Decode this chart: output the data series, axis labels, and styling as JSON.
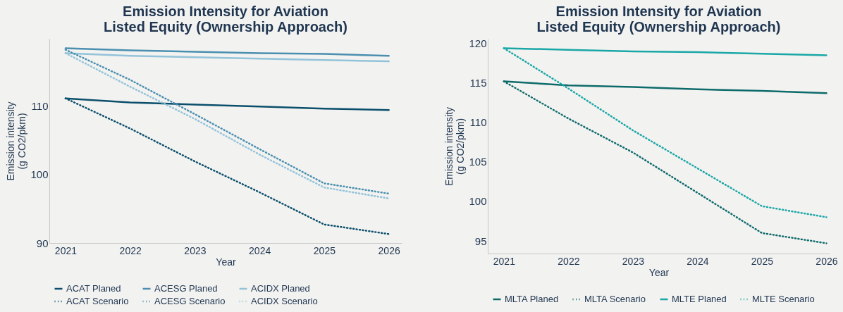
{
  "chart_data": [
    {
      "type": "line",
      "title": "Emission Intensity for Aviation\nListed Equity (Ownership Approach)",
      "xlabel": "Year",
      "ylabel": "Emission intensity\n(g CO2/pkm)",
      "x": [
        2021,
        2022,
        2023,
        2024,
        2025,
        2026
      ],
      "xlim": [
        2020.75,
        2026.2
      ],
      "xticks": [
        2021,
        2022,
        2023,
        2024,
        2025,
        2026
      ],
      "ylim": [
        90,
        119.8
      ],
      "yticks": [
        90,
        100,
        110
      ],
      "grid": false,
      "legend": "bottom",
      "series": [
        {
          "name": "ACAT Planed",
          "color": "#0b4f6c",
          "line_style": "solid",
          "values": [
            111.1,
            110.5,
            110.2,
            109.9,
            109.6,
            109.4
          ]
        },
        {
          "name": "ACESG Planed",
          "color": "#4a8fb0",
          "line_style": "solid",
          "values": [
            118.4,
            118.1,
            117.9,
            117.7,
            117.6,
            117.3
          ]
        },
        {
          "name": "ACIDX Planed",
          "color": "#93c3da",
          "line_style": "solid",
          "values": [
            117.7,
            117.3,
            117.1,
            116.9,
            116.7,
            116.5
          ]
        },
        {
          "name": "ACAT Scenario",
          "color": "#0b4f6c",
          "line_style": "dotted",
          "values": [
            111.1,
            106.7,
            101.9,
            97.4,
            92.7,
            91.3
          ]
        },
        {
          "name": "ACESG Scenario",
          "color": "#4a8fb0",
          "line_style": "dotted",
          "values": [
            118.2,
            113.8,
            108.8,
            103.7,
            98.7,
            97.2
          ]
        },
        {
          "name": "ACIDX Scenario",
          "color": "#93c3da",
          "line_style": "dotted",
          "values": [
            117.7,
            112.8,
            108.1,
            102.9,
            98.1,
            96.5
          ]
        }
      ]
    },
    {
      "type": "line",
      "title": "Emission Intensity for Aviation\nListed Equity (Ownership Approach)",
      "xlabel": "Year",
      "ylabel": "Emission intensity\n(g CO2/pkm)",
      "x": [
        2021,
        2022,
        2023,
        2024,
        2025,
        2026
      ],
      "xlim": [
        2020.75,
        2026.05
      ],
      "xticks": [
        2021,
        2022,
        2023,
        2024,
        2025,
        2026
      ],
      "ylim": [
        93.4,
        120.6
      ],
      "yticks": [
        95,
        100,
        105,
        110,
        115,
        120
      ],
      "grid": false,
      "legend": "bottom",
      "series": [
        {
          "name": "MLTA Planed",
          "color": "#0e6b6b",
          "line_style": "solid",
          "values": [
            115.2,
            114.7,
            114.5,
            114.2,
            114.0,
            113.7
          ]
        },
        {
          "name": "MLTA Scenario",
          "color": "#0e6b6b",
          "line_style": "dotted",
          "values": [
            115.2,
            110.5,
            106.2,
            101.1,
            96.0,
            94.7
          ]
        },
        {
          "name": "MLTE Planed",
          "color": "#1aa7a7",
          "line_style": "solid",
          "values": [
            119.4,
            119.2,
            119.0,
            118.9,
            118.7,
            118.5
          ]
        },
        {
          "name": "MLTE Scenario",
          "color": "#1aa7a7",
          "line_style": "dotted",
          "values": [
            119.4,
            114.3,
            109.0,
            104.2,
            99.4,
            98.0
          ]
        }
      ]
    }
  ]
}
